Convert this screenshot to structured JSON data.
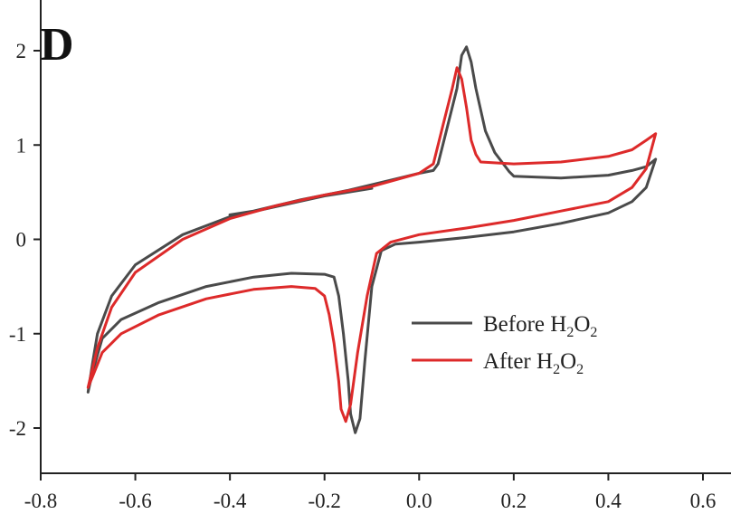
{
  "chart_data": {
    "type": "line",
    "panel_label": "D",
    "title": "",
    "xlabel": "",
    "ylabel": "",
    "xlim": [
      -0.8,
      0.6
    ],
    "ylim": [
      -2.5,
      2.3
    ],
    "x_ticks": [
      -0.8,
      -0.6,
      -0.4,
      -0.2,
      0.0,
      0.2,
      0.4,
      0.6
    ],
    "x_tick_labels": [
      "-0.8",
      "-0.6",
      "-0.4",
      "-0.2",
      "0.0",
      "0.2",
      "0.4",
      "0.6"
    ],
    "y_ticks": [
      -2,
      -1,
      0,
      1,
      2
    ],
    "y_tick_labels": [
      "-2",
      "-1",
      "0",
      "1",
      "2"
    ],
    "grid": false,
    "legend_position": "lower-right",
    "series": [
      {
        "name": "Before H2O2",
        "legend_main": "Before H",
        "legend_sub1": "2",
        "legend_mid": "O",
        "legend_sub2": "2",
        "color": "#4a4a4a",
        "points": [
          [
            -0.1,
            0.54
          ],
          [
            -0.2,
            0.46
          ],
          [
            -0.3,
            0.35
          ],
          [
            -0.4,
            0.24
          ],
          [
            -0.5,
            0.05
          ],
          [
            -0.6,
            -0.27
          ],
          [
            -0.65,
            -0.6
          ],
          [
            -0.68,
            -1.0
          ],
          [
            -0.69,
            -1.3
          ],
          [
            -0.7,
            -1.62
          ],
          [
            -0.69,
            -1.4
          ],
          [
            -0.67,
            -1.05
          ],
          [
            -0.63,
            -0.85
          ],
          [
            -0.55,
            -0.67
          ],
          [
            -0.45,
            -0.5
          ],
          [
            -0.35,
            -0.4
          ],
          [
            -0.27,
            -0.36
          ],
          [
            -0.2,
            -0.37
          ],
          [
            -0.18,
            -0.4
          ],
          [
            -0.17,
            -0.6
          ],
          [
            -0.16,
            -1.0
          ],
          [
            -0.15,
            -1.5
          ],
          [
            -0.145,
            -1.85
          ],
          [
            -0.135,
            -2.05
          ],
          [
            -0.125,
            -1.9
          ],
          [
            -0.115,
            -1.3
          ],
          [
            -0.1,
            -0.5
          ],
          [
            -0.08,
            -0.12
          ],
          [
            -0.05,
            -0.05
          ],
          [
            0.0,
            -0.03
          ],
          [
            0.1,
            0.02
          ],
          [
            0.2,
            0.08
          ],
          [
            0.3,
            0.17
          ],
          [
            0.4,
            0.28
          ],
          [
            0.45,
            0.4
          ],
          [
            0.48,
            0.55
          ],
          [
            0.5,
            0.85
          ],
          [
            0.48,
            0.77
          ],
          [
            0.45,
            0.73
          ],
          [
            0.4,
            0.68
          ],
          [
            0.3,
            0.65
          ],
          [
            0.2,
            0.67
          ],
          [
            0.19,
            0.72
          ],
          [
            0.16,
            0.92
          ],
          [
            0.14,
            1.15
          ],
          [
            0.12,
            1.6
          ],
          [
            0.11,
            1.88
          ],
          [
            0.1,
            2.04
          ],
          [
            0.09,
            1.95
          ],
          [
            0.08,
            1.6
          ],
          [
            0.06,
            1.2
          ],
          [
            0.04,
            0.8
          ],
          [
            0.03,
            0.73
          ],
          [
            0.0,
            0.7
          ],
          [
            -0.05,
            0.64
          ],
          [
            -0.15,
            0.52
          ],
          [
            -0.25,
            0.42
          ],
          [
            -0.35,
            0.3
          ],
          [
            -0.4,
            0.26
          ]
        ]
      },
      {
        "name": "After H2O2",
        "legend_main": "After H",
        "legend_sub1": "2",
        "legend_mid": "O",
        "legend_sub2": "2",
        "color": "#dd2a2a",
        "points": [
          [
            -0.4,
            0.22
          ],
          [
            -0.5,
            0.0
          ],
          [
            -0.6,
            -0.35
          ],
          [
            -0.65,
            -0.72
          ],
          [
            -0.68,
            -1.15
          ],
          [
            -0.7,
            -1.57
          ],
          [
            -0.69,
            -1.45
          ],
          [
            -0.67,
            -1.2
          ],
          [
            -0.63,
            -1.0
          ],
          [
            -0.55,
            -0.8
          ],
          [
            -0.45,
            -0.63
          ],
          [
            -0.35,
            -0.53
          ],
          [
            -0.27,
            -0.5
          ],
          [
            -0.22,
            -0.52
          ],
          [
            -0.2,
            -0.6
          ],
          [
            -0.19,
            -0.8
          ],
          [
            -0.18,
            -1.1
          ],
          [
            -0.17,
            -1.5
          ],
          [
            -0.165,
            -1.8
          ],
          [
            -0.155,
            -1.93
          ],
          [
            -0.145,
            -1.75
          ],
          [
            -0.13,
            -1.2
          ],
          [
            -0.11,
            -0.6
          ],
          [
            -0.09,
            -0.15
          ],
          [
            -0.06,
            -0.03
          ],
          [
            0.0,
            0.05
          ],
          [
            0.1,
            0.12
          ],
          [
            0.2,
            0.2
          ],
          [
            0.3,
            0.3
          ],
          [
            0.4,
            0.4
          ],
          [
            0.45,
            0.55
          ],
          [
            0.48,
            0.75
          ],
          [
            0.5,
            1.12
          ],
          [
            0.48,
            1.05
          ],
          [
            0.45,
            0.95
          ],
          [
            0.4,
            0.88
          ],
          [
            0.3,
            0.82
          ],
          [
            0.2,
            0.8
          ],
          [
            0.13,
            0.82
          ],
          [
            0.12,
            0.9
          ],
          [
            0.11,
            1.05
          ],
          [
            0.1,
            1.4
          ],
          [
            0.09,
            1.7
          ],
          [
            0.08,
            1.82
          ],
          [
            0.07,
            1.6
          ],
          [
            0.05,
            1.2
          ],
          [
            0.03,
            0.8
          ],
          [
            0.0,
            0.7
          ],
          [
            -0.1,
            0.56
          ],
          [
            -0.2,
            0.47
          ],
          [
            -0.3,
            0.36
          ],
          [
            -0.4,
            0.22
          ]
        ]
      }
    ]
  }
}
